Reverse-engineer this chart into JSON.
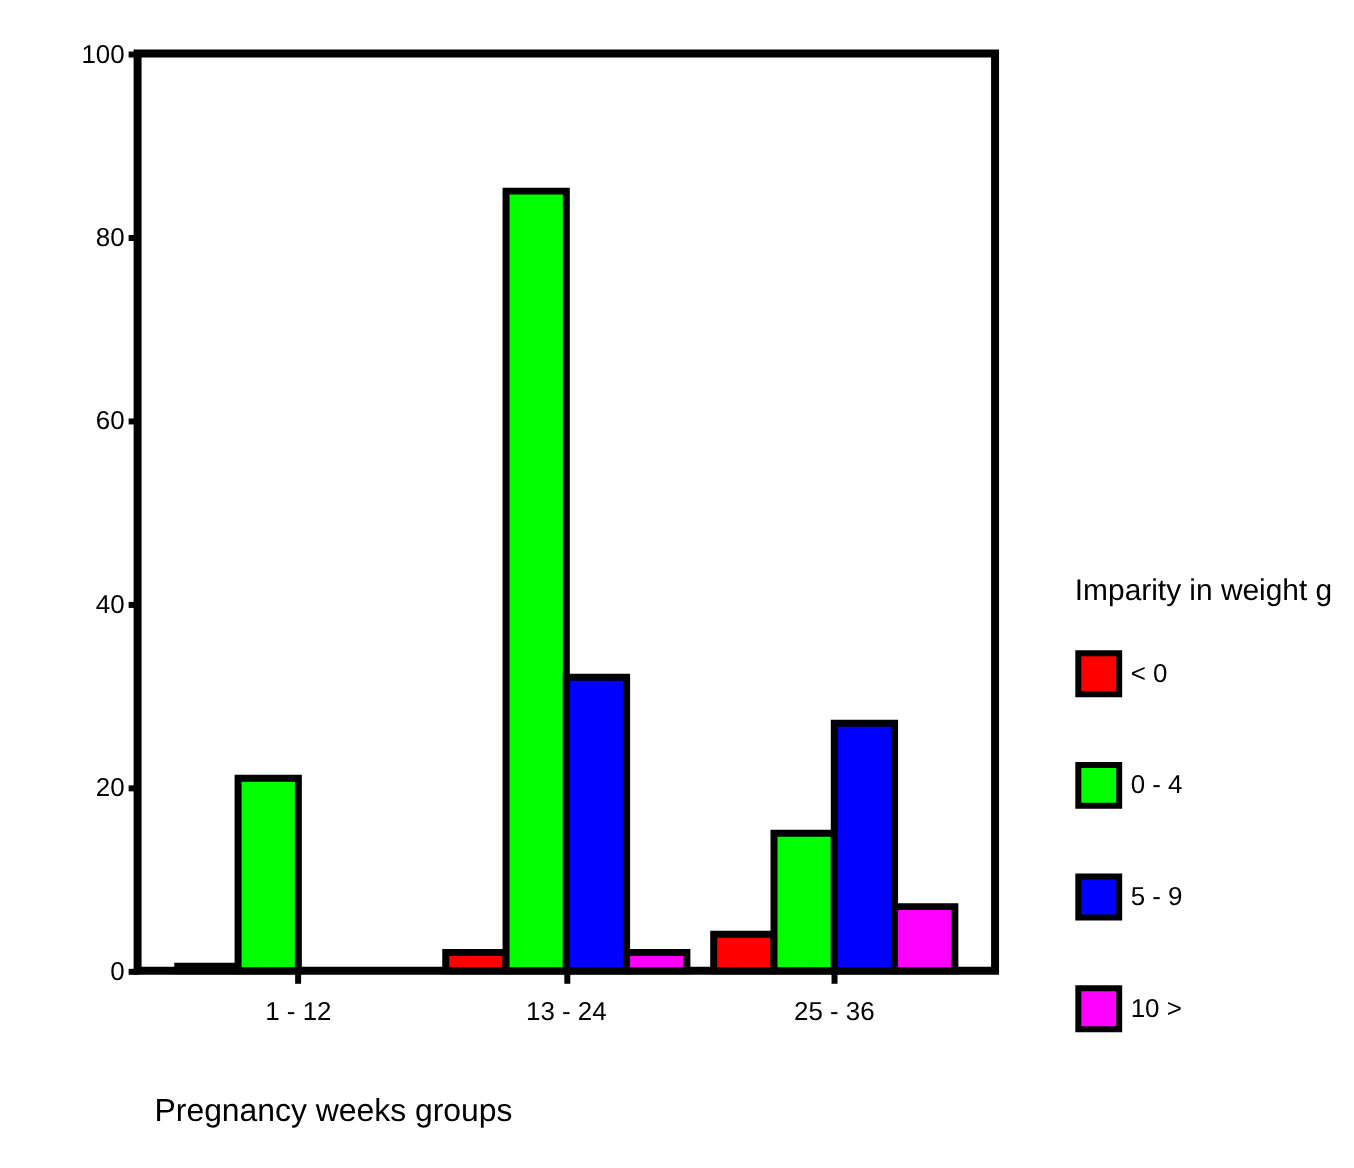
{
  "chart_data": {
    "type": "bar",
    "xlabel": "Pregnancy weeks groups",
    "legend_title": "Imparity in weight g",
    "categories": [
      "1  -  12",
      "13 - 24",
      "25 - 36"
    ],
    "series": [
      {
        "name": "< 0",
        "color": "#ff0000",
        "values": [
          0.5,
          2,
          4
        ]
      },
      {
        "name": "0  -  4",
        "color": "#00ff00",
        "values": [
          21,
          85,
          15
        ]
      },
      {
        "name": "5  -  9",
        "color": "#0000ff",
        "values": [
          null,
          32,
          27
        ]
      },
      {
        "name": "10 >",
        "color": "#ff00ff",
        "values": [
          null,
          2,
          7
        ]
      }
    ],
    "ylim": [
      0,
      100
    ],
    "yticks": [
      0,
      20,
      40,
      60,
      80,
      100
    ],
    "grid": false,
    "legend": "right"
  }
}
